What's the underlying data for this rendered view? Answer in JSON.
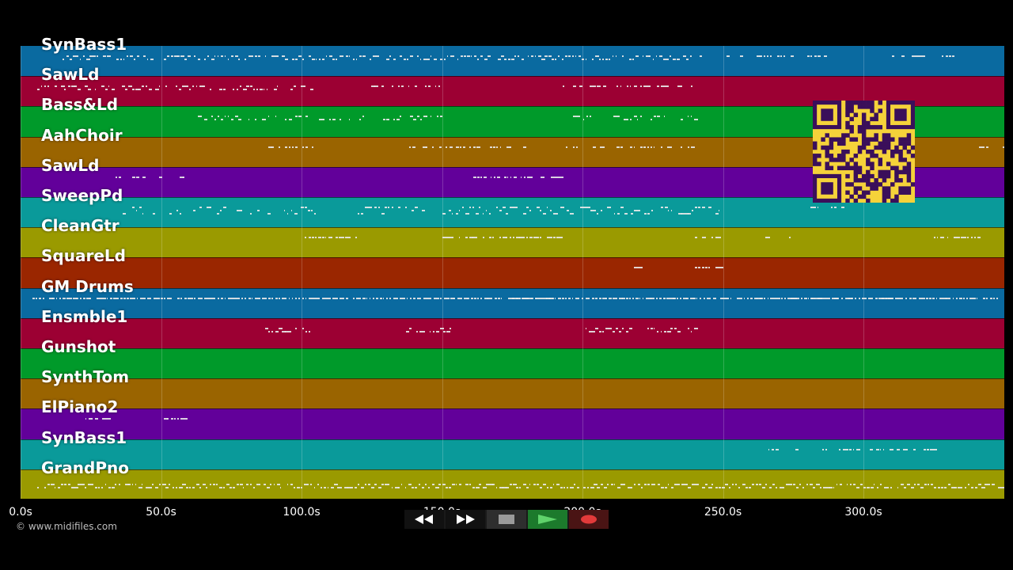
{
  "tracks": [
    {
      "name": "SynBass1",
      "color": "#0a6aa0"
    },
    {
      "name": "SawLd",
      "color": "#9c0033"
    },
    {
      "name": "Bass&Ld",
      "color": "#009a2a"
    },
    {
      "name": "AahChoir",
      "color": "#9a6400"
    },
    {
      "name": "SawLd",
      "color": "#62009a"
    },
    {
      "name": "SweepPd",
      "color": "#0a9a9a"
    },
    {
      "name": "CleanGtr",
      "color": "#9a9a00"
    },
    {
      "name": "SquareLd",
      "color": "#9a2600"
    },
    {
      "name": "GM Drums",
      "color": "#0a6aa0"
    },
    {
      "name": "Ensmble1",
      "color": "#9c0033"
    },
    {
      "name": "Gunshot",
      "color": "#009a2a"
    },
    {
      "name": "SynthTom",
      "color": "#9a6400"
    },
    {
      "name": "ElPiano2",
      "color": "#62009a"
    },
    {
      "name": "SynBass1",
      "color": "#0a9a9a"
    },
    {
      "name": "GrandPno",
      "color": "#9a9a00"
    }
  ],
  "timeline": {
    "ticks": [
      "0.0s",
      "50.0s",
      "100.0s",
      "150.0s",
      "200.0s",
      "250.0s",
      "300.0s"
    ],
    "tick_values": [
      0,
      50,
      100,
      150,
      200,
      250,
      300
    ],
    "max_seconds": 350
  },
  "copyright": "© www.midifiles.com",
  "transport": {
    "rewind_icon": "rewind-icon",
    "fast_forward_icon": "fast-forward-icon",
    "stop_icon": "stop-icon",
    "play_icon": "play-icon",
    "record_icon": "record-icon"
  },
  "qr_icon": "qr-code-icon"
}
